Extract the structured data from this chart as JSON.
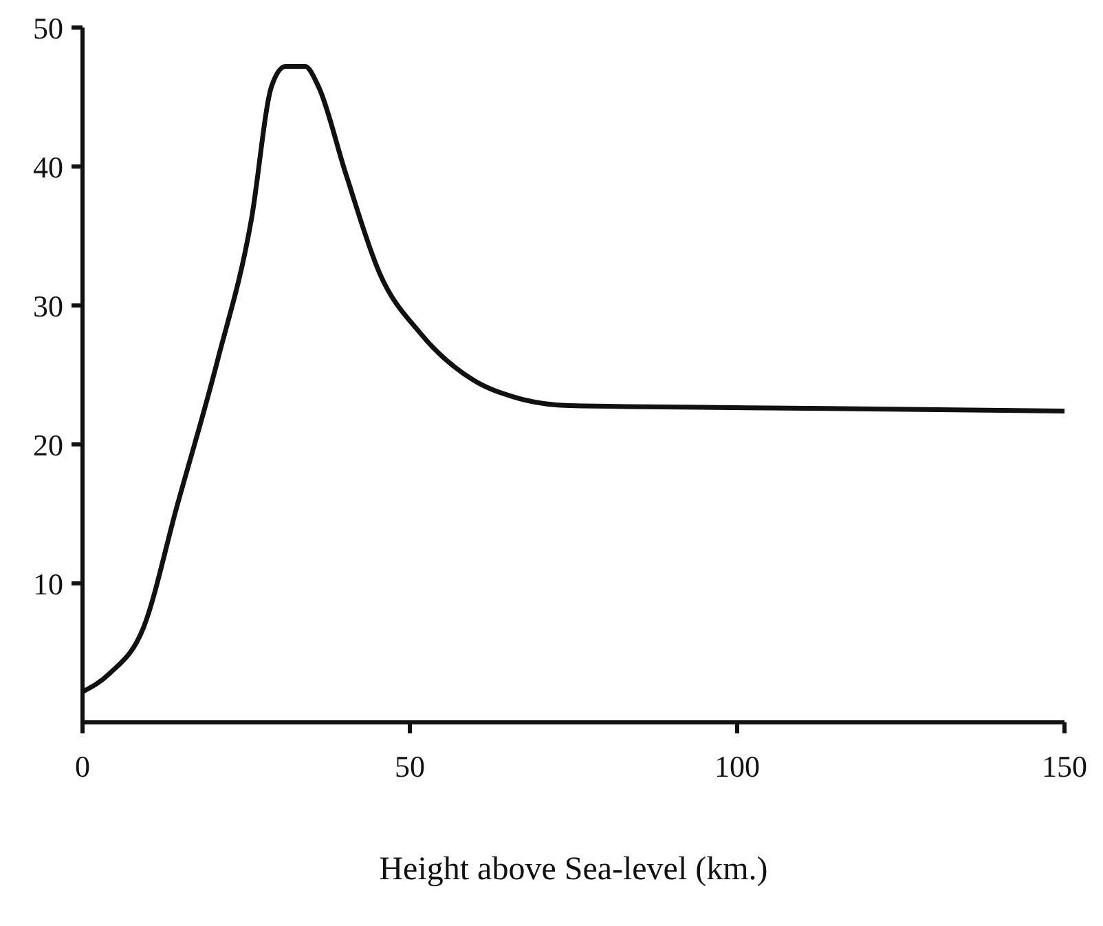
{
  "chart_data": {
    "type": "line",
    "xlabel": "Height above Sea-level (km.)",
    "xlim": [
      0,
      150
    ],
    "xticks": [
      0,
      50,
      100,
      150
    ],
    "ylim": [
      0,
      50
    ],
    "yticks": [
      10,
      20,
      30,
      40,
      50
    ],
    "grid": false,
    "legend": false,
    "marker": "none",
    "line_style": "solid",
    "series": [
      {
        "color": "#111111",
        "x": [
          0,
          4.1,
          9.3,
          14.4,
          20.6,
          25.8,
          28.9,
          31,
          34,
          36,
          40.2,
          45.4,
          51.6,
          59.8,
          66,
          74.3,
          111.4,
          150
        ],
        "values": [
          2.2,
          3.5,
          6.8,
          15.5,
          26,
          36.2,
          45.8,
          47.2,
          47.2,
          45.8,
          39.5,
          32.3,
          28,
          24.6,
          23.4,
          22.8,
          22.6,
          22.4
        ]
      }
    ]
  }
}
